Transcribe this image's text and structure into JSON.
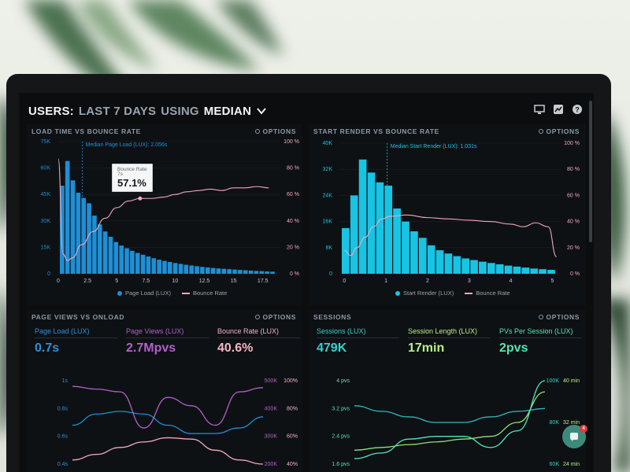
{
  "header": {
    "title_users": "USERS:",
    "title_range": "LAST 7 DAYS",
    "title_using": "USING",
    "title_stat": "MEDIAN"
  },
  "panels": {
    "load_time": {
      "title": "LOAD TIME VS BOUNCE RATE",
      "options": "OPTIONS"
    },
    "start_render": {
      "title": "START RENDER VS BOUNCE RATE",
      "options": "OPTIONS"
    },
    "page_views": {
      "title": "PAGE VIEWS VS ONLOAD",
      "options": "OPTIONS"
    },
    "sessions": {
      "title": "SESSIONS",
      "options": "OPTIONS"
    }
  },
  "tooltip": {
    "line1": "Bounce Rate",
    "line2": "7s",
    "value": "57.1%"
  },
  "metrics_left": [
    {
      "label": "Page Load (LUX)",
      "value": "0.7s",
      "color": "#2f8fd8"
    },
    {
      "label": "Page Views (LUX)",
      "value": "2.7Mpvs",
      "color": "#b060c8"
    },
    {
      "label": "Bounce Rate (LUX)",
      "value": "40.6%",
      "color": "#f2b4c4"
    }
  ],
  "metrics_right": [
    {
      "label": "Sessions (LUX)",
      "value": "479K",
      "color": "#38d0c8"
    },
    {
      "label": "Session Length (LUX)",
      "value": "17min",
      "color": "#b9f08a"
    },
    {
      "label": "PVs Per Session (LUX)",
      "value": "2pvs",
      "color": "#52e6b4"
    }
  ],
  "colors": {
    "blue_bar": "#1e8fd6",
    "cyan_bar": "#17c4e4",
    "pink_line": "#f2a8bc",
    "purple_line": "#b060c8",
    "teal_line": "#2fb8b8",
    "green_line": "#8fe07a",
    "mint_line": "#52e6b4"
  },
  "chart_data": [
    {
      "type": "bar",
      "title": "LOAD TIME VS BOUNCE RATE",
      "annotation": "Median Page Load (LUX): 2.056s",
      "x_ticks": [
        "0",
        "2.5",
        "5",
        "7.5",
        "10",
        "12.5",
        "15",
        "17.5"
      ],
      "y_ticks_left": [
        "0",
        "15K",
        "30K",
        "45K",
        "60K",
        "75K"
      ],
      "y_ticks_right": [
        "0 %",
        "20 %",
        "40 %",
        "60 %",
        "80 %",
        "100 %"
      ],
      "xlim": [
        0,
        19
      ],
      "ylim_left": [
        0,
        75000
      ],
      "ylim_right": [
        0,
        100
      ],
      "legend": [
        "Page Load (LUX)",
        "Bounce Rate"
      ],
      "series": [
        {
          "name": "Page Load (LUX)",
          "kind": "bar",
          "values": [
            50000,
            64000,
            53000,
            46000,
            43000,
            40000,
            33000,
            28000,
            24000,
            21000,
            18000,
            16000,
            14500,
            13000,
            11800,
            10800,
            9800,
            8800,
            8000,
            7300,
            6700,
            6100,
            5600,
            5100,
            4700,
            4300,
            3900,
            3600,
            3300,
            3000,
            2800,
            2600,
            2400,
            2200,
            2000,
            1800,
            1600,
            1500,
            1300,
            1200
          ]
        },
        {
          "name": "Bounce Rate",
          "kind": "line",
          "x": [
            0,
            0.4,
            0.8,
            1.2,
            2,
            3,
            4,
            5,
            6,
            7,
            8,
            9,
            10,
            11,
            12,
            13,
            14,
            15,
            16,
            17,
            18
          ],
          "values": [
            87,
            15,
            10,
            12,
            22,
            32,
            42,
            50,
            55,
            57,
            57,
            58,
            60,
            62,
            63,
            64,
            63,
            65,
            65,
            66,
            65
          ]
        }
      ]
    },
    {
      "type": "bar",
      "title": "START RENDER VS BOUNCE RATE",
      "annotation": "Median Start Render (LUX): 1.031s",
      "x_ticks": [
        "0",
        "1",
        "2",
        "3",
        "4",
        "5"
      ],
      "y_ticks_left": [
        "0",
        "8K",
        "16K",
        "24K",
        "32K",
        "40K"
      ],
      "y_ticks_right": [
        "0 %",
        "20 %",
        "40 %",
        "60 %",
        "80 %",
        "100 %"
      ],
      "xlim": [
        -0.1,
        5.2
      ],
      "ylim_left": [
        0,
        40000
      ],
      "ylim_right": [
        0,
        100
      ],
      "legend": [
        "Start Render (LUX)",
        "Bounce Rate"
      ],
      "series": [
        {
          "name": "Start Render (LUX)",
          "kind": "bar",
          "values": [
            14000,
            24000,
            35000,
            31000,
            28000,
            27000,
            20000,
            16000,
            13000,
            11000,
            8700,
            7200,
            6200,
            5400,
            4700,
            4200,
            3700,
            3300,
            2900,
            2500,
            2200,
            1900,
            1600,
            1400,
            1200
          ]
        },
        {
          "name": "Bounce Rate",
          "kind": "line",
          "x": [
            0,
            0.15,
            0.3,
            0.5,
            0.7,
            0.9,
            1.1,
            1.5,
            2,
            2.5,
            3,
            3.5,
            4,
            4.3,
            4.6,
            4.9,
            5.1
          ],
          "values": [
            18,
            14,
            20,
            28,
            36,
            42,
            44,
            45,
            43,
            42,
            41,
            40,
            38,
            36,
            39,
            36,
            13
          ]
        }
      ]
    },
    {
      "type": "line",
      "title": "PAGE VIEWS VS ONLOAD",
      "y_ticks_left": [
        "0.4s",
        "0.6s",
        "0.8s",
        "1s"
      ],
      "y_ticks_mid": [
        "200K",
        "300K",
        "400K",
        "500K"
      ],
      "y_ticks_right": [
        "40%",
        "60%",
        "80%",
        "100%"
      ],
      "series": [
        {
          "name": "Page Load (LUX)",
          "values": [
            0.68,
            0.76,
            0.78,
            0.76,
            0.68,
            0.62,
            0.62,
            0.66,
            0.74
          ]
        },
        {
          "name": "Page Views (LUX)",
          "values": [
            480,
            470,
            460,
            330,
            440,
            410,
            340,
            460,
            475
          ]
        },
        {
          "name": "Bounce Rate (LUX)",
          "values": [
            43,
            47,
            52,
            56,
            59,
            58,
            50,
            43,
            40
          ]
        }
      ]
    },
    {
      "type": "line",
      "title": "SESSIONS",
      "y_ticks_left": [
        "1.6 pvs",
        "2.4 pvs",
        "3.2 pvs",
        "4 pvs"
      ],
      "y_ticks_mid": [
        "60K",
        "80K",
        "100K"
      ],
      "y_ticks_right": [
        "24 min",
        "32 min",
        "40 min"
      ],
      "series": [
        {
          "name": "Sessions (LUX)",
          "values": [
            3.1,
            2.9,
            2.7,
            2.5,
            2.5,
            2.7,
            2.9,
            3.0
          ]
        },
        {
          "name": "Session Length (LUX)",
          "values": [
            1.5,
            1.6,
            1.7,
            1.8,
            1.9,
            2.0,
            2.5,
            3.6
          ]
        },
        {
          "name": "PVs Per Session (LUX)",
          "values": [
            1.2,
            1.4,
            1.9,
            2.0,
            2.0,
            1.6,
            2.2,
            4.0
          ]
        }
      ]
    }
  ]
}
